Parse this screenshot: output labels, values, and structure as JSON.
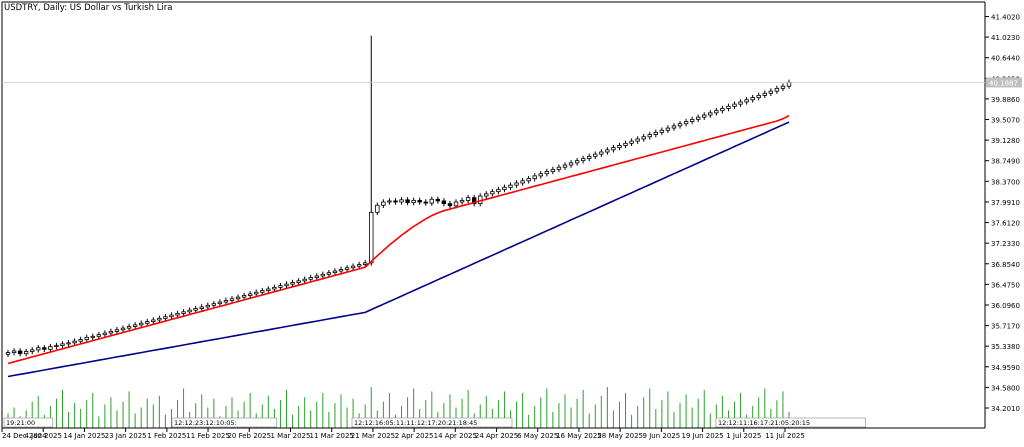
{
  "chart_title": "USDTRY, Daily:  US Dollar vs Turkish Lira",
  "colors": {
    "background": "#ffffff",
    "axis": "#000000",
    "grid": "#c8c8c8",
    "candle": "#000000",
    "ma_fast": "#ff0000",
    "ma_slow": "#00008b",
    "volume": "#2ca02c",
    "price_marker": "#c0c0c0"
  },
  "chart_data": {
    "type": "candlestick",
    "title": "USDTRY, Daily:  US Dollar vs Turkish Lira",
    "xlabel": "",
    "ylabel": "",
    "ylim": [
      34.0,
      41.6
    ],
    "y_ticks": [
      "41.4020",
      "41.0230",
      "40.6440",
      "40.2650",
      "39.8860",
      "39.5070",
      "39.1280",
      "38.7490",
      "38.3700",
      "37.9910",
      "37.6120",
      "37.2330",
      "36.8540",
      "36.4750",
      "36.0960",
      "35.7170",
      "35.3380",
      "34.9590",
      "34.5800",
      "34.2010"
    ],
    "x_ticks": [
      "24 Dec 2024",
      "4 Jan 2025",
      "14 Jan 2025",
      "23 Jan 2025",
      "1 Feb 2025",
      "11 Feb 2025",
      "20 Feb 2025",
      "1 Mar 2025",
      "11 Mar 2025",
      "21 Mar 2025",
      "2 Apr 2025",
      "14 Apr 2025",
      "24 Apr 2025",
      "6 May 2025",
      "16 May 2025",
      "28 May 2025",
      "9 Jun 2025",
      "19 Jun 2025",
      "1 Jul 2025",
      "11 Jul 2025"
    ],
    "current_price": "40.1887",
    "candles_close": [
      35.22,
      35.25,
      35.2,
      35.24,
      35.27,
      35.31,
      35.28,
      35.33,
      35.35,
      35.38,
      35.4,
      35.43,
      35.46,
      35.5,
      35.52,
      35.55,
      35.58,
      35.61,
      35.64,
      35.67,
      35.7,
      35.73,
      35.76,
      35.79,
      35.82,
      35.85,
      35.88,
      35.91,
      35.94,
      35.97,
      36.0,
      36.03,
      36.06,
      36.09,
      36.12,
      36.15,
      36.18,
      36.21,
      36.24,
      36.27,
      36.3,
      36.33,
      36.36,
      36.39,
      36.42,
      36.45,
      36.48,
      36.51,
      36.54,
      36.57,
      36.6,
      36.63,
      36.66,
      36.69,
      36.72,
      36.75,
      36.78,
      36.81,
      36.84,
      36.87,
      37.8,
      37.93,
      37.99,
      38.01,
      37.99,
      38.03,
      37.98,
      38.02,
      37.99,
      37.97,
      38.04,
      38.01,
      37.96,
      37.92,
      37.99,
      38.02,
      38.07,
      37.96,
      38.1,
      38.14,
      38.18,
      38.22,
      38.26,
      38.3,
      38.34,
      38.38,
      38.42,
      38.47,
      38.51,
      38.55,
      38.59,
      38.63,
      38.67,
      38.71,
      38.75,
      38.79,
      38.83,
      38.87,
      38.91,
      38.95,
      38.99,
      39.03,
      39.07,
      39.11,
      39.15,
      39.19,
      39.23,
      39.27,
      39.31,
      39.35,
      39.39,
      39.43,
      39.47,
      39.51,
      39.55,
      39.59,
      39.63,
      39.67,
      39.71,
      39.75,
      39.79,
      39.83,
      39.87,
      39.91,
      39.95,
      39.99,
      40.03,
      40.08,
      40.12,
      40.19
    ],
    "series": [
      {
        "name": "",
        "color": "#ff0000",
        "values": [
          35.02,
          35.05,
          35.08,
          35.11,
          35.14,
          35.17,
          35.2,
          35.23,
          35.26,
          35.29,
          35.32,
          35.35,
          35.38,
          35.41,
          35.44,
          35.47,
          35.5,
          35.53,
          35.56,
          35.59,
          35.62,
          35.65,
          35.68,
          35.71,
          35.74,
          35.77,
          35.8,
          35.83,
          35.86,
          35.89,
          35.92,
          35.95,
          35.98,
          36.01,
          36.04,
          36.07,
          36.1,
          36.13,
          36.16,
          36.19,
          36.22,
          36.25,
          36.28,
          36.31,
          36.34,
          36.37,
          36.4,
          36.43,
          36.46,
          36.49,
          36.52,
          36.55,
          36.58,
          36.61,
          36.64,
          36.67,
          36.7,
          36.73,
          36.76,
          36.79,
          36.9,
          37.0,
          37.1,
          37.2,
          37.29,
          37.38,
          37.46,
          37.54,
          37.61,
          37.68,
          37.74,
          37.79,
          37.83,
          37.86,
          37.89,
          37.92,
          37.95,
          37.98,
          38.01,
          38.04,
          38.07,
          38.1,
          38.13,
          38.16,
          38.19,
          38.22,
          38.25,
          38.28,
          38.31,
          38.34,
          38.37,
          38.4,
          38.43,
          38.46,
          38.49,
          38.52,
          38.55,
          38.58,
          38.61,
          38.64,
          38.67,
          38.7,
          38.73,
          38.76,
          38.79,
          38.82,
          38.85,
          38.88,
          38.91,
          38.94,
          38.97,
          39.0,
          39.03,
          39.06,
          39.09,
          39.12,
          39.15,
          39.18,
          39.21,
          39.24,
          39.27,
          39.3,
          39.33,
          39.36,
          39.39,
          39.42,
          39.45,
          39.48,
          39.52,
          39.58
        ]
      },
      {
        "name": "",
        "color": "#00008b",
        "values": [
          34.78,
          34.8,
          34.82,
          34.84,
          34.86,
          34.88,
          34.9,
          34.92,
          34.94,
          34.96,
          34.98,
          35.0,
          35.02,
          35.04,
          35.06,
          35.08,
          35.1,
          35.12,
          35.14,
          35.16,
          35.18,
          35.2,
          35.22,
          35.24,
          35.26,
          35.28,
          35.3,
          35.32,
          35.34,
          35.36,
          35.38,
          35.4,
          35.42,
          35.44,
          35.46,
          35.48,
          35.5,
          35.52,
          35.54,
          35.56,
          35.58,
          35.6,
          35.62,
          35.64,
          35.66,
          35.68,
          35.7,
          35.72,
          35.74,
          35.76,
          35.78,
          35.8,
          35.82,
          35.84,
          35.86,
          35.88,
          35.9,
          35.92,
          35.94,
          35.96,
          36.01,
          36.06,
          36.11,
          36.16,
          36.21,
          36.26,
          36.31,
          36.36,
          36.41,
          36.46,
          36.51,
          36.56,
          36.61,
          36.66,
          36.71,
          36.76,
          36.81,
          36.86,
          36.91,
          36.96,
          37.01,
          37.06,
          37.11,
          37.16,
          37.21,
          37.26,
          37.31,
          37.36,
          37.41,
          37.46,
          37.51,
          37.56,
          37.61,
          37.66,
          37.71,
          37.76,
          37.81,
          37.86,
          37.91,
          37.96,
          38.01,
          38.06,
          38.11,
          38.16,
          38.21,
          38.26,
          38.31,
          38.36,
          38.41,
          38.46,
          38.51,
          38.56,
          38.61,
          38.66,
          38.71,
          38.76,
          38.81,
          38.86,
          38.91,
          38.96,
          39.01,
          39.06,
          39.11,
          39.16,
          39.21,
          39.26,
          39.31,
          39.36,
          39.41,
          39.46
        ]
      }
    ],
    "spike": {
      "index": 60,
      "high": 41.05
    },
    "volume": [
      10,
      14,
      8,
      12,
      18,
      22,
      9,
      15,
      20,
      26,
      11,
      17,
      13,
      19,
      24,
      8,
      16,
      21,
      12,
      18,
      25,
      10,
      14,
      20,
      16,
      22,
      9,
      13,
      19,
      27,
      11,
      17,
      23,
      14,
      20,
      8,
      15,
      21,
      12,
      18,
      24,
      10,
      16,
      22,
      13,
      19,
      26,
      9,
      15,
      21,
      12,
      18,
      24,
      11,
      17,
      23,
      14,
      20,
      10,
      16,
      28,
      12,
      18,
      24,
      9,
      15,
      21,
      27,
      13,
      19,
      25,
      11,
      17,
      23,
      14,
      20,
      26,
      10,
      16,
      22,
      13,
      19,
      25,
      12,
      18,
      24,
      9,
      15,
      21,
      27,
      11,
      17,
      23,
      14,
      20,
      26,
      10,
      16,
      22,
      28,
      12,
      18,
      24,
      9,
      15,
      21,
      27,
      13,
      19,
      25,
      11,
      17,
      23,
      14,
      20,
      26,
      10,
      16,
      22,
      12,
      18,
      24,
      9,
      15,
      21,
      27,
      13,
      19,
      25,
      11
    ],
    "time_labels": [
      "19:21:00",
      "12:12:23:12:10:05:",
      "12:12:16:05:11:11:12:17:20:21:18:45",
      "12:12:11:16:17:21:05:20:15"
    ]
  }
}
